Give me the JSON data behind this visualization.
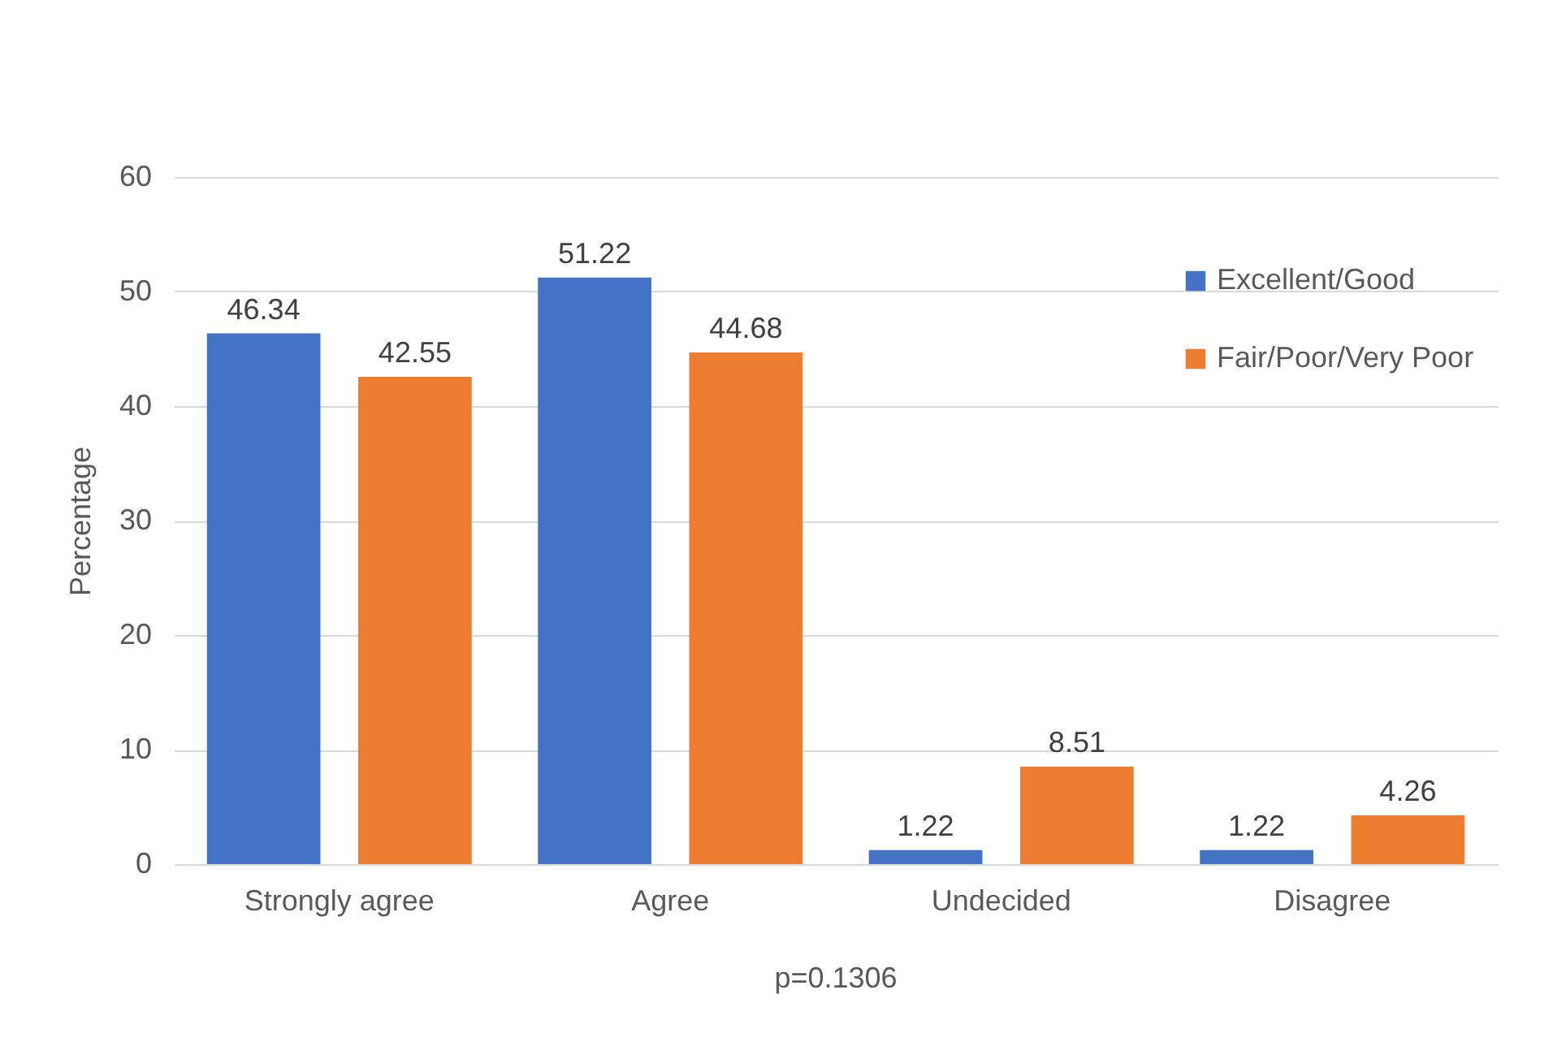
{
  "chart_data": {
    "type": "bar",
    "ylabel": "Percentage",
    "categories": [
      "Strongly agree",
      "Agree",
      "Undecided",
      "Disagree"
    ],
    "series": [
      {
        "name": "Excellent/Good",
        "color": "#4472c4",
        "values": [
          46.34,
          51.22,
          1.22,
          1.22
        ]
      },
      {
        "name": "Fair/Poor/Very Poor",
        "color": "#ed7d31",
        "values": [
          42.55,
          44.68,
          8.51,
          4.26
        ]
      }
    ],
    "ylim": [
      0,
      60
    ],
    "yticks": [
      0,
      10,
      20,
      30,
      40,
      50,
      60
    ],
    "grid": "y",
    "legend": "top right",
    "data_labels": true,
    "annotations": [
      "p=0.1306"
    ]
  }
}
